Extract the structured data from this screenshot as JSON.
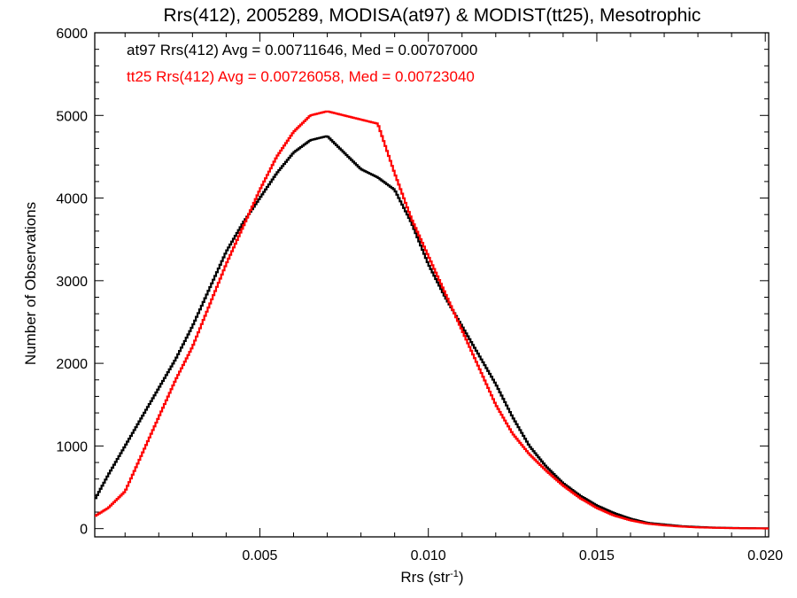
{
  "chart_data": {
    "type": "line",
    "step": true,
    "title": "Rrs(412), 2005289, MODISA(at97) & MODIST(tt25), Mesotrophic",
    "xlabel": "Rrs (str",
    "xlabel_sup": "-1",
    "xlabel_close": ")",
    "ylabel": "Number of Observations",
    "xlim": [
      0.0001,
      0.0201
    ],
    "ylim": [
      -100,
      6000
    ],
    "xticks": [
      0.005,
      0.01,
      0.015,
      0.02
    ],
    "xtick_labels": [
      "0.005",
      "0.010",
      "0.015",
      "0.020"
    ],
    "yticks": [
      0,
      1000,
      2000,
      3000,
      4000,
      5000,
      6000
    ],
    "ytick_labels": [
      "0",
      "1000",
      "2000",
      "3000",
      "4000",
      "5000",
      "6000"
    ],
    "legend_position": "top-left",
    "series": [
      {
        "key": "at97",
        "color": "#000000",
        "legend": "at97 Rrs(412) Avg = 0.00711646, Med = 0.00707000",
        "x": [
          0.0001,
          0.0005,
          0.001,
          0.0015,
          0.002,
          0.0025,
          0.003,
          0.0035,
          0.004,
          0.0045,
          0.005,
          0.0055,
          0.006,
          0.0065,
          0.007,
          0.0075,
          0.008,
          0.0085,
          0.009,
          0.0095,
          0.01,
          0.0105,
          0.011,
          0.0115,
          0.012,
          0.0125,
          0.013,
          0.0135,
          0.014,
          0.0145,
          0.015,
          0.0155,
          0.016,
          0.0165,
          0.017,
          0.0175,
          0.018,
          0.0185,
          0.019,
          0.0195,
          0.02
        ],
        "y": [
          350,
          650,
          1000,
          1350,
          1700,
          2050,
          2450,
          2900,
          3350,
          3700,
          4000,
          4300,
          4550,
          4700,
          4750,
          4550,
          4350,
          4250,
          4100,
          3700,
          3200,
          2800,
          2450,
          2100,
          1750,
          1350,
          1000,
          750,
          550,
          400,
          280,
          190,
          120,
          70,
          50,
          30,
          20,
          12,
          8,
          5,
          3
        ]
      },
      {
        "key": "tt25",
        "color": "#ff0000",
        "legend": "tt25 Rrs(412) Avg = 0.00726058, Med = 0.00723040",
        "x": [
          0.0001,
          0.0005,
          0.001,
          0.0015,
          0.002,
          0.0025,
          0.003,
          0.0035,
          0.004,
          0.0045,
          0.005,
          0.0055,
          0.006,
          0.0065,
          0.007,
          0.0075,
          0.008,
          0.0085,
          0.009,
          0.0095,
          0.01,
          0.0105,
          0.011,
          0.0115,
          0.012,
          0.0125,
          0.013,
          0.0135,
          0.014,
          0.0145,
          0.015,
          0.0155,
          0.016,
          0.0165,
          0.017,
          0.0175,
          0.018,
          0.0185,
          0.019,
          0.0195,
          0.02
        ],
        "y": [
          150,
          250,
          450,
          900,
          1350,
          1800,
          2200,
          2700,
          3200,
          3650,
          4100,
          4500,
          4800,
          5000,
          5050,
          5000,
          4950,
          4900,
          4300,
          3750,
          3300,
          2850,
          2400,
          1950,
          1500,
          1150,
          900,
          700,
          520,
          370,
          250,
          160,
          100,
          60,
          40,
          25,
          15,
          10,
          6,
          4,
          2
        ]
      }
    ]
  }
}
